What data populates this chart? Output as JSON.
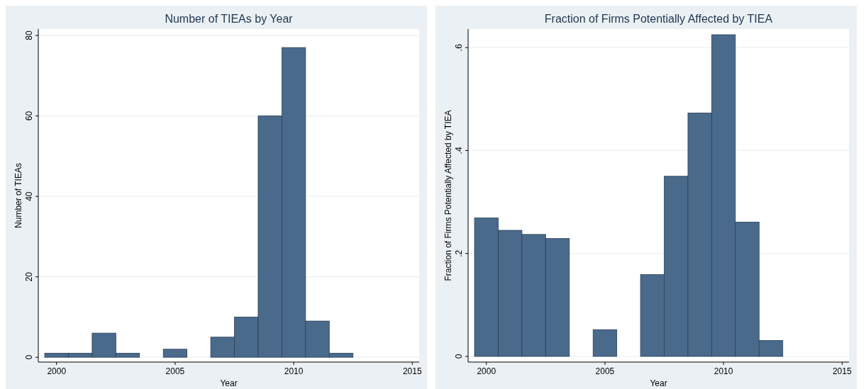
{
  "chart_data": [
    {
      "type": "histogram",
      "title": "Number of TIEAs by Year",
      "xlabel": "Year",
      "ylabel": "Number of TIEAs",
      "bins": [
        1999.5,
        2000.5,
        2001.5,
        2002.5,
        2003.5,
        2004.5,
        2005.5,
        2006.5,
        2007.5,
        2008.5,
        2009.5,
        2010.5,
        2011.5,
        2012.5
      ],
      "values": [
        1,
        1,
        6,
        1,
        0,
        2,
        0,
        5,
        10,
        60,
        77,
        9,
        1
      ],
      "color": "#4a6a8c",
      "xlim": [
        1999.23,
        2015.29
      ],
      "ylim": [
        -1.2,
        81.6
      ],
      "xticks": [
        2000,
        2005,
        2010,
        2015
      ],
      "yticks": [
        0,
        20,
        40,
        60,
        80
      ],
      "grid": "y"
    },
    {
      "type": "histogram",
      "title": "Fraction of Firms Potentially Affected by TIEA",
      "xlabel": "Year",
      "ylabel": "Fraction of Firms Potentially Affected by TIEA",
      "bins": [
        1999.5,
        2000.5,
        2001.5,
        2002.5,
        2003.5,
        2004.5,
        2005.5,
        2006.5,
        2007.5,
        2008.5,
        2009.5,
        2010.5,
        2011.5,
        2012.5
      ],
      "values": [
        0.269,
        0.245,
        0.237,
        0.229,
        0,
        0.052,
        0,
        0.159,
        0.35,
        0.473,
        0.625,
        0.261,
        0.031
      ],
      "color": "#4a6a8c",
      "xlim": [
        1999.23,
        2015.29
      ],
      "ylim": [
        -0.011,
        0.636
      ],
      "xticks": [
        2000,
        2005,
        2010,
        2015
      ],
      "yticks": [
        {
          "value": 0,
          "label": "0"
        },
        {
          "value": 0.2,
          "label": ".2"
        },
        {
          "value": 0.4,
          "label": ".4"
        },
        {
          "value": 0.6,
          "label": ".6"
        }
      ],
      "grid": "y"
    }
  ]
}
